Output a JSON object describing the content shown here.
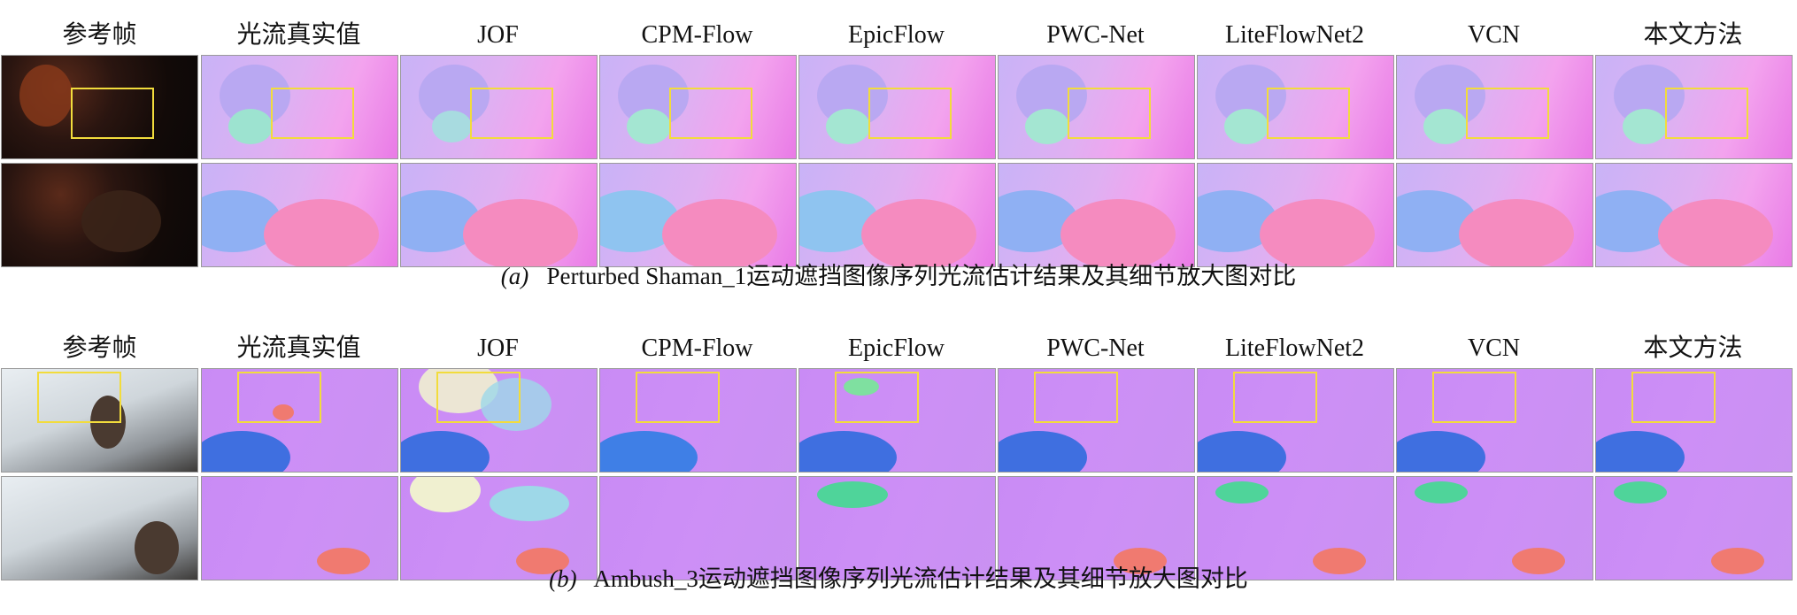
{
  "colors": {
    "zoom_box": "#f2dc3c",
    "flow_background_a": "#e8b0f0",
    "flow_background_b": "#c98ff5"
  },
  "panel_a": {
    "column_labels": [
      "参考帧",
      "光流真实值",
      "JOF",
      "CPM-Flow",
      "EpicFlow",
      "PWC-Net",
      "LiteFlowNet2",
      "VCN",
      "本文方法"
    ],
    "caption_letter": "(a)",
    "caption_text": "Perturbed Shaman_1运动遮挡图像序列光流估计结果及其细节放大图对比"
  },
  "panel_b": {
    "column_labels": [
      "参考帧",
      "光流真实值",
      "JOF",
      "CPM-Flow",
      "EpicFlow",
      "PWC-Net",
      "LiteFlowNet2",
      "VCN",
      "本文方法"
    ],
    "caption_letter": "(b)",
    "caption_text": "Ambush_3运动遮挡图像序列光流估计结果及其细节放大图对比"
  }
}
